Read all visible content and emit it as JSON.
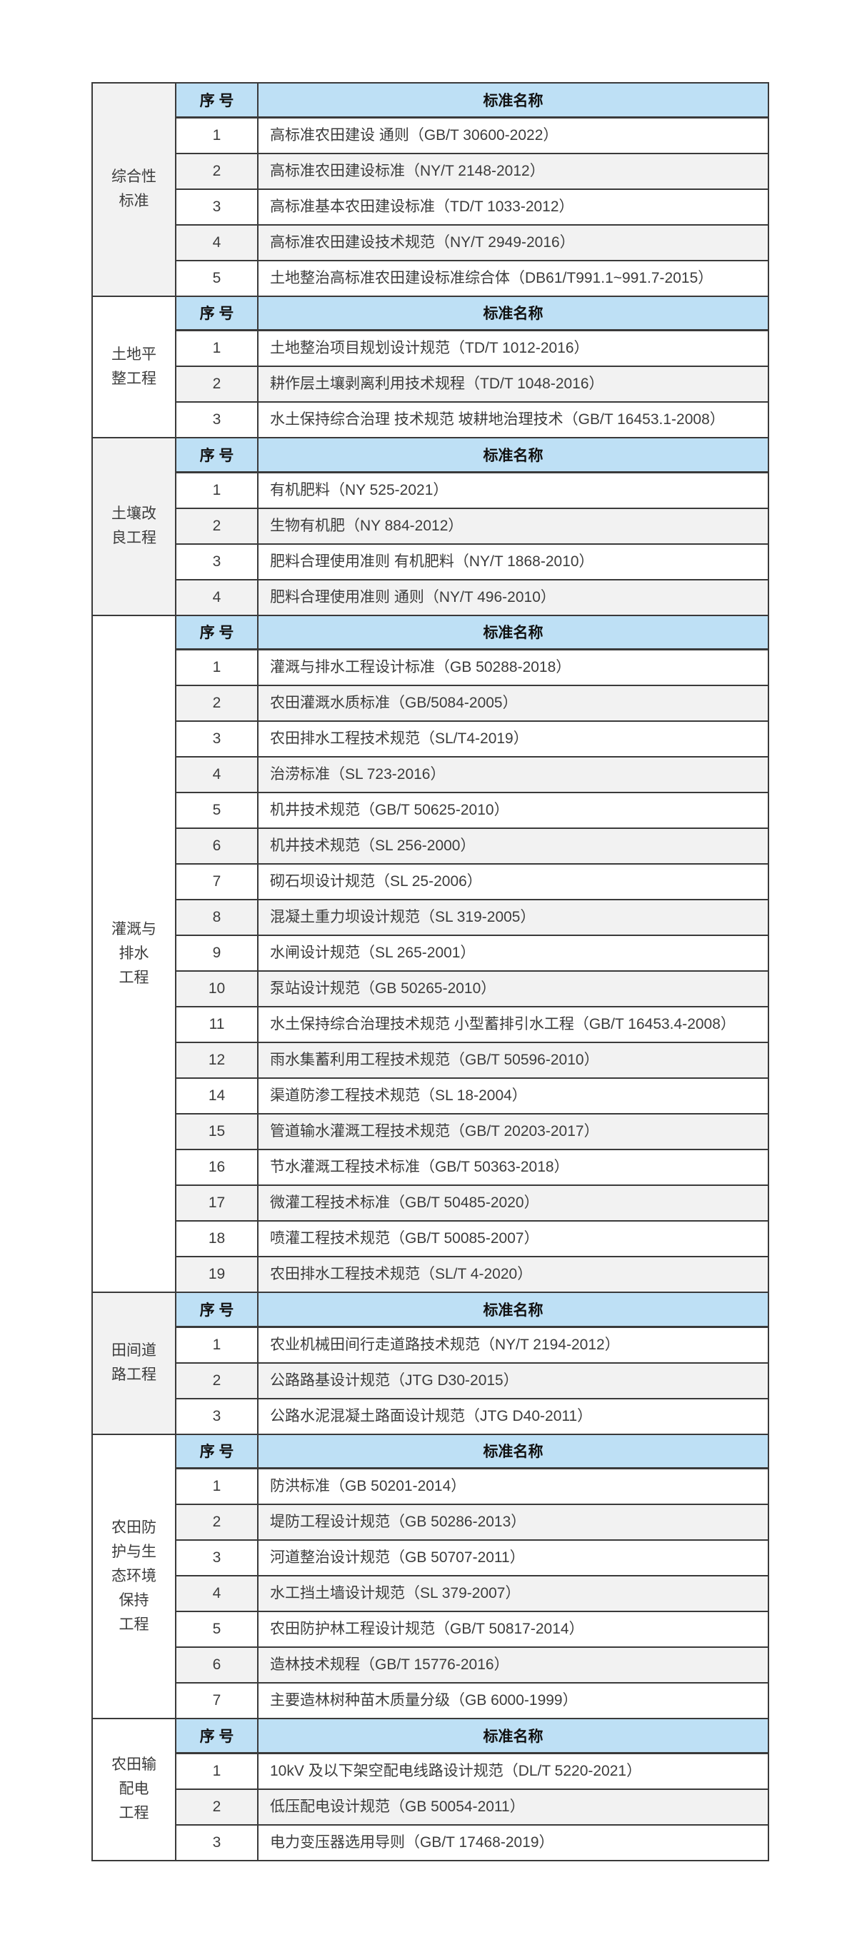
{
  "page": {
    "background": "#FFFFFF"
  },
  "colors": {
    "header_bg": "#BEE0F5",
    "stripe": "#F2F2F2",
    "row_white": "#FFFFFF",
    "border": "#3A3A3A",
    "text": "#3C3C3C",
    "header_text": "#111111"
  },
  "table": {
    "column_headers": {
      "no": "序 号",
      "name": "标准名称"
    },
    "sections": [
      {
        "id": "comprehensive-standards",
        "category": "综合性\n标准",
        "category_bg": "stripe",
        "rows": [
          [
            "1",
            "高标准农田建设 通则（GB/T 30600-2022）"
          ],
          [
            "2",
            "高标准农田建设标准（NY/T 2148-2012）"
          ],
          [
            "3",
            "高标准基本农田建设标准（TD/T 1033-2012）"
          ],
          [
            "4",
            "高标准农田建设技术规范（NY/T 2949-2016）"
          ],
          [
            "5",
            "土地整治高标准农田建设标准综合体（DB61/T991.1~991.7-2015）"
          ]
        ]
      },
      {
        "id": "land-leveling",
        "category": "土地平\n整工程",
        "category_bg": "row_white",
        "rows": [
          [
            "1",
            "土地整治项目规划设计规范（TD/T 1012-2016）"
          ],
          [
            "2",
            "耕作层土壤剥离利用技术规程（TD/T 1048-2016）"
          ],
          [
            "3",
            "水土保持综合治理 技术规范 坡耕地治理技术（GB/T 16453.1-2008）"
          ]
        ]
      },
      {
        "id": "soil-improvement",
        "category": "土壤改\n良工程",
        "category_bg": "stripe",
        "rows": [
          [
            "1",
            "有机肥料（NY 525-2021）"
          ],
          [
            "2",
            "生物有机肥（NY 884-2012）"
          ],
          [
            "3",
            "肥料合理使用准则 有机肥料（NY/T 1868-2010）"
          ],
          [
            "4",
            "肥料合理使用准则 通则（NY/T 496-2010）"
          ]
        ]
      },
      {
        "id": "irrigation-drainage",
        "category": "灌溉与\n排水\n工程",
        "category_bg": "row_white",
        "rows": [
          [
            "1",
            "灌溉与排水工程设计标准（GB 50288-2018）"
          ],
          [
            "2",
            "农田灌溉水质标准（GB/5084-2005）"
          ],
          [
            "3",
            "农田排水工程技术规范（SL/T4-2019）"
          ],
          [
            "4",
            "治涝标准（SL 723-2016）"
          ],
          [
            "5",
            "机井技术规范（GB/T 50625-2010）"
          ],
          [
            "6",
            "机井技术规范（SL 256-2000）"
          ],
          [
            "7",
            "砌石坝设计规范（SL 25-2006）"
          ],
          [
            "8",
            "混凝土重力坝设计规范（SL 319-2005）"
          ],
          [
            "9",
            "水闸设计规范（SL 265-2001）"
          ],
          [
            "10",
            "泵站设计规范（GB 50265-2010）"
          ],
          [
            "11",
            "水土保持综合治理技术规范 小型蓄排引水工程（GB/T 16453.4-2008）"
          ],
          [
            "12",
            "雨水集蓄利用工程技术规范（GB/T 50596-2010）"
          ],
          [
            "14",
            "渠道防渗工程技术规范（SL 18-2004）"
          ],
          [
            "15",
            "管道输水灌溉工程技术规范（GB/T 20203-2017）"
          ],
          [
            "16",
            "节水灌溉工程技术标准（GB/T 50363-2018）"
          ],
          [
            "17",
            "微灌工程技术标准（GB/T 50485-2020）"
          ],
          [
            "18",
            "喷灌工程技术规范（GB/T 50085-2007）"
          ],
          [
            "19",
            "农田排水工程技术规范（SL/T 4-2020）"
          ]
        ]
      },
      {
        "id": "field-roads",
        "category": "田间道\n路工程",
        "category_bg": "stripe",
        "rows": [
          [
            "1",
            "农业机械田间行走道路技术规范（NY/T 2194-2012）"
          ],
          [
            "2",
            "公路路基设计规范（JTG D30-2015）"
          ],
          [
            "3",
            "公路水泥混凝土路面设计规范（JTG D40-2011）"
          ]
        ]
      },
      {
        "id": "farmland-protection-ecology",
        "category": "农田防\n护与生\n态环境\n保持\n工程",
        "category_bg": "row_white",
        "rows": [
          [
            "1",
            "防洪标准（GB 50201-2014）"
          ],
          [
            "2",
            "堤防工程设计规范（GB 50286-2013）"
          ],
          [
            "3",
            "河道整治设计规范（GB 50707-2011）"
          ],
          [
            "4",
            "水工挡土墙设计规范（SL 379-2007）"
          ],
          [
            "5",
            "农田防护林工程设计规范（GB/T 50817-2014）"
          ],
          [
            "6",
            "造林技术规程（GB/T 15776-2016）"
          ],
          [
            "7",
            "主要造林树种苗木质量分级（GB 6000-1999）"
          ]
        ]
      },
      {
        "id": "power-distribution",
        "category": "农田输\n配电\n工程",
        "category_bg": "row_white",
        "rows": [
          [
            "1",
            "10kV 及以下架空配电线路设计规范（DL/T 5220-2021）"
          ],
          [
            "2",
            "低压配电设计规范（GB 50054-2011）"
          ],
          [
            "3",
            "电力变压器选用导则（GB/T 17468-2019）"
          ]
        ]
      }
    ]
  }
}
